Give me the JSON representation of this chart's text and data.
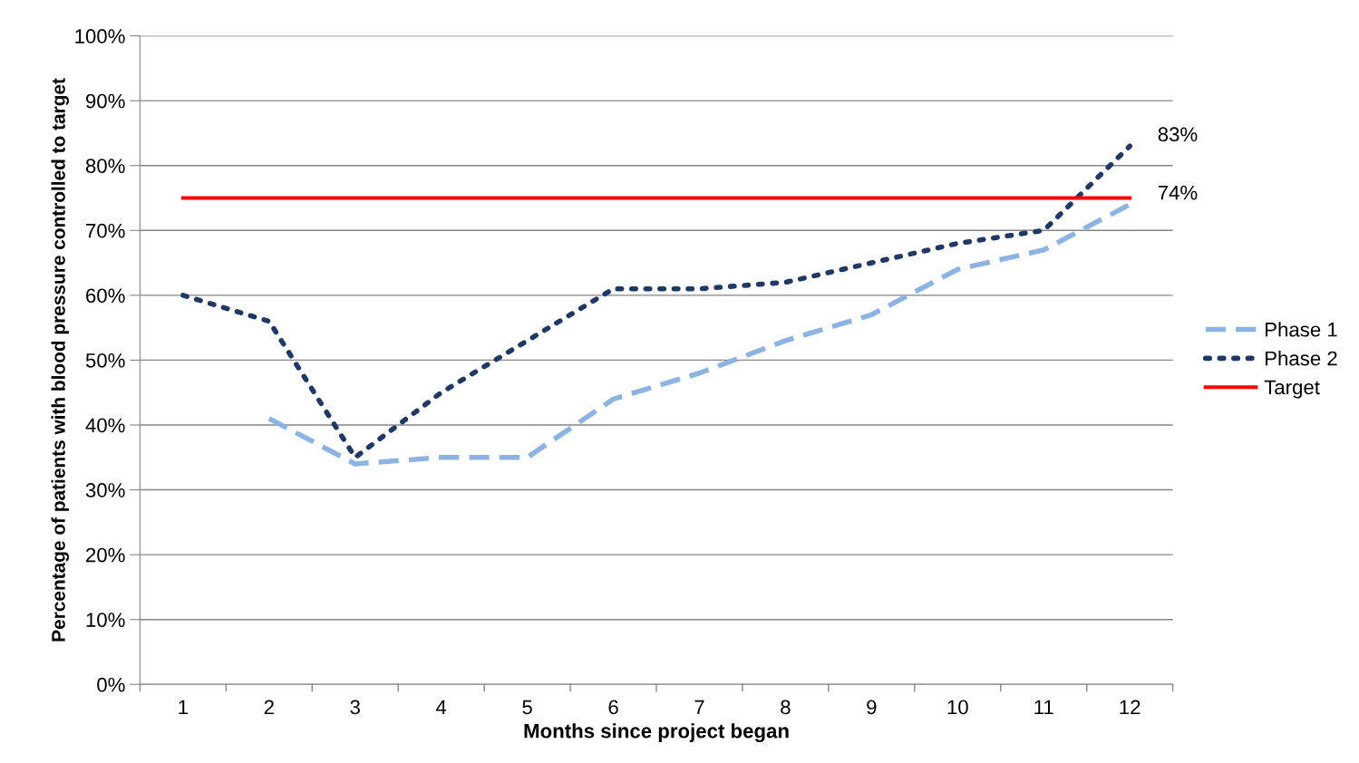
{
  "chart_data": {
    "type": "line",
    "xlabel": "Months since project began",
    "ylabel": "Percentage of patients with blood pressure controlled to target",
    "categories": [
      "1",
      "2",
      "3",
      "4",
      "5",
      "6",
      "7",
      "8",
      "9",
      "10",
      "11",
      "12"
    ],
    "series": [
      {
        "name": "Phase 1",
        "color": "#8db3e2",
        "line_style": "dashed",
        "values": [
          null,
          41,
          34,
          35,
          35,
          44,
          48,
          53,
          57,
          64,
          67,
          74
        ],
        "value_labels": [
          null,
          null,
          null,
          null,
          null,
          null,
          null,
          null,
          null,
          null,
          null,
          "74%"
        ]
      },
      {
        "name": "Phase 2",
        "color": "#1f3864",
        "line_style": "dotted",
        "values": [
          60,
          56,
          35,
          45,
          53,
          61,
          61,
          62,
          65,
          68,
          70,
          83
        ],
        "value_labels": [
          null,
          null,
          null,
          null,
          null,
          null,
          null,
          null,
          null,
          null,
          null,
          "83%"
        ]
      },
      {
        "name": "Target",
        "color": "#ff0000",
        "line_style": "solid",
        "values": [
          75,
          75,
          75,
          75,
          75,
          75,
          75,
          75,
          75,
          75,
          75,
          75
        ]
      }
    ],
    "ylim": [
      0,
      100
    ],
    "yticks": [
      {
        "value": 0,
        "label": "0%"
      },
      {
        "value": 10,
        "label": "10%"
      },
      {
        "value": 20,
        "label": "20%"
      },
      {
        "value": 30,
        "label": "30%"
      },
      {
        "value": 40,
        "label": "40%"
      },
      {
        "value": 50,
        "label": "50%"
      },
      {
        "value": 60,
        "label": "60%"
      },
      {
        "value": 70,
        "label": "70%"
      },
      {
        "value": 80,
        "label": "80%"
      },
      {
        "value": 90,
        "label": "90%"
      },
      {
        "value": 100,
        "label": "100%"
      }
    ],
    "grid": "y",
    "legend": "right",
    "marker": "none"
  }
}
